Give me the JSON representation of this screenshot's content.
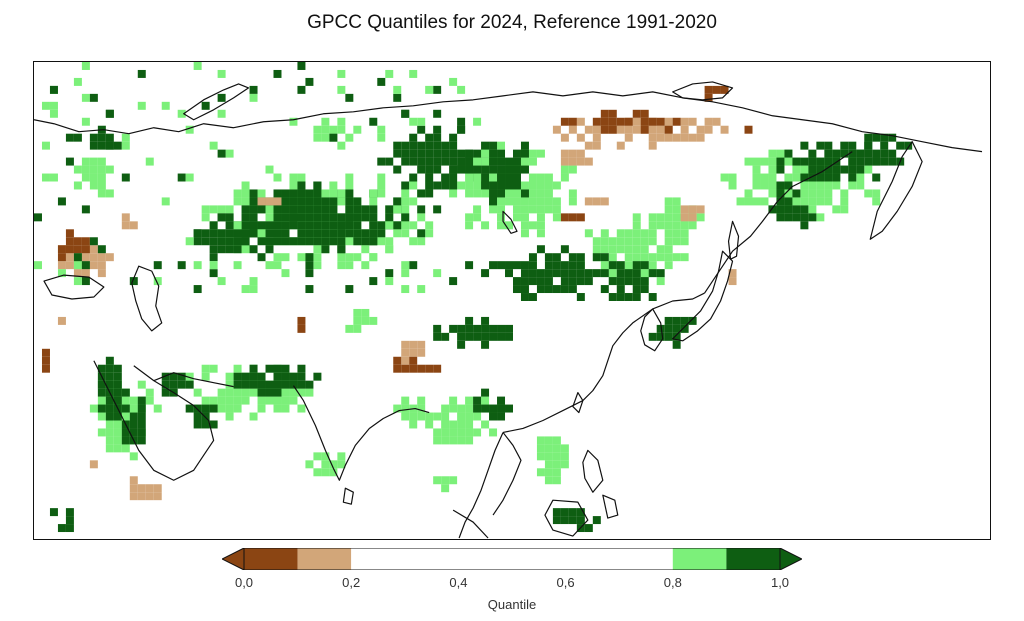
{
  "title": "GPCC Quantiles for 2024, Reference 1991-2020",
  "colorbar": {
    "label": "Quantile",
    "ticks": [
      "0,0",
      "0,2",
      "0,4",
      "0,6",
      "0,8",
      "1,0"
    ],
    "tick_values": [
      0.0,
      0.2,
      0.4,
      0.6,
      0.8,
      1.0
    ],
    "classes": [
      {
        "from": 0.0,
        "to": 0.1,
        "color": "#8B4513"
      },
      {
        "from": 0.1,
        "to": 0.2,
        "color": "#D2A679"
      },
      {
        "from": 0.2,
        "to": 0.8,
        "color": "#ffffff"
      },
      {
        "from": 0.8,
        "to": 0.9,
        "color": "#7CF07A"
      },
      {
        "from": 0.9,
        "to": 1.0,
        "color": "#0E5E12"
      }
    ],
    "under_color": "#8B4513",
    "over_color": "#0E5E12"
  },
  "map": {
    "region": "Asia",
    "colors": {
      "very_dry": "#8B4513",
      "dry": "#D2A679",
      "wet": "#7CF07A",
      "very_wet": "#0E5E12",
      "coastline": "#111111"
    }
  }
}
